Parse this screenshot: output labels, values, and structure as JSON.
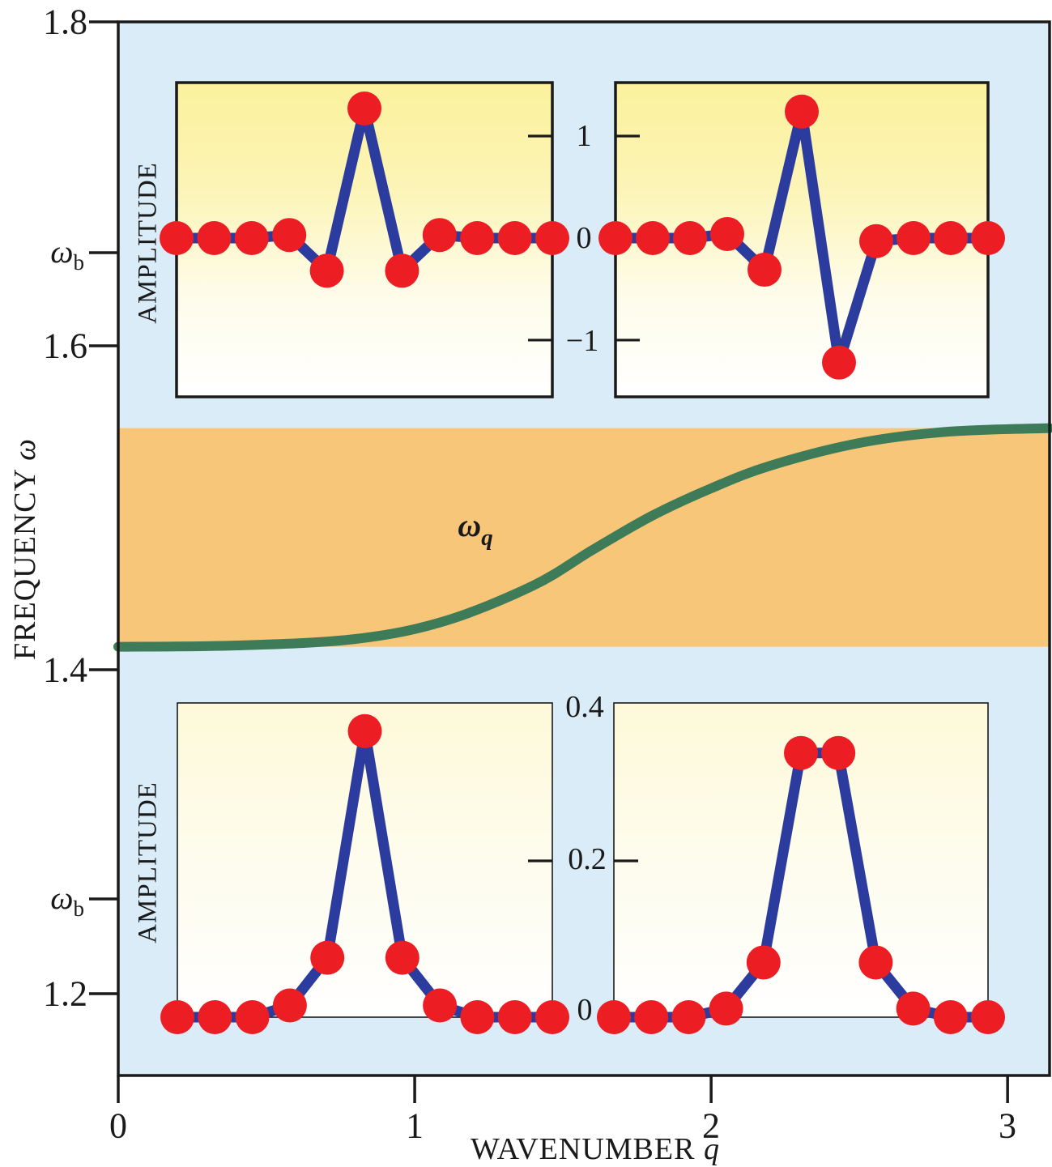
{
  "labels": {
    "ylabel": {
      "text": "FREQUENCY ",
      "symbol": "ω"
    },
    "xlabel": {
      "text": "WAVENUMBER ",
      "symbol": "q"
    },
    "amplitude_top": "AMPLITUDE",
    "amplitude_bottom": "AMPLITUDE",
    "omega_b_top": {
      "symbol": "ω",
      "sub": "b"
    },
    "omega_b_bottom": {
      "symbol": "ω",
      "sub": "b"
    },
    "omega_q": {
      "symbol": "ω",
      "sub": "q"
    },
    "ytick_labels": [
      "1.8",
      "1.6",
      "1.4",
      "1.2"
    ],
    "xtick_labels": [
      "0",
      "1",
      "2",
      "3"
    ],
    "top_inset_tick_labels": [
      "1",
      "0",
      "−1"
    ],
    "bottom_inset_tick_labels": [
      "0.4",
      "0.2",
      "0"
    ]
  },
  "chart_data": {
    "type": "composite",
    "main": {
      "type": "line",
      "xlabel": "WAVENUMBER q",
      "ylabel": "FREQUENCY ω",
      "xlim": [
        0,
        3.1416
      ],
      "ylim": [
        1.1495,
        1.8
      ],
      "xticks": [
        0,
        1,
        2,
        3
      ],
      "yticks": [
        1.8,
        1.6575,
        1.6,
        1.4,
        1.2585,
        1.2
      ],
      "ytick_texts": [
        "1.8",
        "ω_b",
        "1.6",
        "1.4",
        "ω_b",
        "1.2"
      ],
      "background": "#d9ecf8",
      "grid": false,
      "phonon_band": {
        "omega_min": 1.4142,
        "omega_max": 1.5492,
        "color": "#f8c678"
      },
      "dispersion": {
        "label": "ω_q",
        "color": "#3e7b58",
        "linewidth": 12,
        "points": [
          [
            0.0,
            1.4142
          ],
          [
            0.4,
            1.415
          ],
          [
            0.8,
            1.419
          ],
          [
            1.1,
            1.43
          ],
          [
            1.4,
            1.452
          ],
          [
            1.6,
            1.474
          ],
          [
            1.8,
            1.495
          ],
          [
            2.0,
            1.512
          ],
          [
            2.2,
            1.526
          ],
          [
            2.5,
            1.54
          ],
          [
            2.8,
            1.547
          ],
          [
            3.1416,
            1.5492
          ]
        ]
      },
      "breather_frequencies": [
        1.6575,
        1.2585
      ]
    },
    "insets": [
      {
        "id": "top-left",
        "ylabel": "AMPLITUDE",
        "sites": [
          -5,
          -4,
          -3,
          -2,
          -1,
          0,
          1,
          2,
          3,
          4,
          5
        ],
        "amplitudes": [
          0,
          0,
          0,
          0.03,
          -0.32,
          1.27,
          -0.32,
          0.03,
          0,
          0,
          0
        ],
        "ylim": [
          -1.556,
          1.524
        ],
        "tick_values": [
          1,
          -1
        ],
        "tick_labels": [
          "1",
          "0",
          "−1"
        ]
      },
      {
        "id": "top-right",
        "sites": [
          -5,
          -4,
          -3,
          -2,
          -1,
          0,
          1,
          2,
          3,
          4,
          5
        ],
        "amplitudes": [
          0,
          0,
          0,
          0.04,
          -0.31,
          1.24,
          -1.22,
          -0.03,
          0,
          0,
          0
        ],
        "ylim": [
          -1.556,
          1.524
        ],
        "tick_values": [
          1,
          -1
        ],
        "tick_labels": [
          "1",
          "0",
          "−1"
        ]
      },
      {
        "id": "bottom-left",
        "ylabel": "AMPLITUDE",
        "sites": [
          -5,
          -4,
          -3,
          -2,
          -1,
          0,
          1,
          2,
          3,
          4,
          5
        ],
        "amplitudes": [
          0,
          0,
          0,
          0.015,
          0.076,
          0.366,
          0.076,
          0.015,
          0,
          0,
          0
        ],
        "ylim": [
          0,
          0.402
        ],
        "tick_values": [
          0.2
        ],
        "tick_labels": [
          "0.4",
          "0.2",
          "0"
        ]
      },
      {
        "id": "bottom-right",
        "sites": [
          -5,
          -4,
          -3,
          -2,
          -1,
          0,
          1,
          2,
          3,
          4,
          5
        ],
        "amplitudes": [
          0,
          0,
          0,
          0.011,
          0.07,
          0.338,
          0.338,
          0.07,
          0.011,
          0,
          0
        ],
        "ylim": [
          0,
          0.402
        ],
        "tick_values": [
          0.2
        ],
        "tick_labels": [
          "0.4",
          "0.2",
          "0"
        ]
      }
    ],
    "style": {
      "line_color": "#2c3b9e",
      "dot_color": "#ed1d24",
      "dot_radius": 21,
      "line_width": 13,
      "frame_color": "#1a1a1a",
      "top_inset_gradient": [
        "#fbf19d",
        "#fcf4b6",
        "#fefce9",
        "#ffffff"
      ],
      "bottom_inset_gradient": [
        "#fdf9d9",
        "#fefced",
        "#ffffff"
      ]
    }
  }
}
